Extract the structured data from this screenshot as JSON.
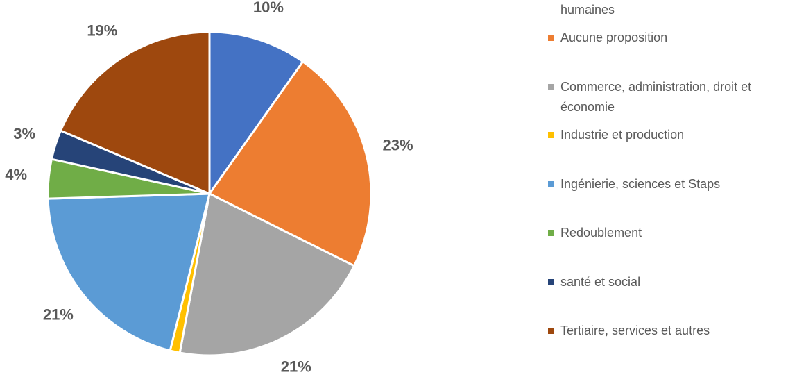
{
  "chart_data": {
    "type": "pie",
    "categories": [
      "humaines",
      "Aucune proposition",
      "Commerce, administration, droit et économie",
      "Industrie et production",
      "Ingénierie, sciences et Staps",
      "Redoublement",
      "santé et social",
      "Tertiaire, services et autres"
    ],
    "values": [
      10,
      23,
      21,
      1,
      21,
      4,
      3,
      19
    ],
    "value_labels": [
      "10%",
      "23%",
      "21%",
      "1%",
      "21%",
      "4%",
      "3%",
      "19%"
    ],
    "colors": [
      "#4472c4",
      "#ed7d31",
      "#a5a5a5",
      "#ffc000",
      "#5b9bd5",
      "#70ad47",
      "#264478",
      "#9e480e"
    ],
    "legend": "right"
  }
}
